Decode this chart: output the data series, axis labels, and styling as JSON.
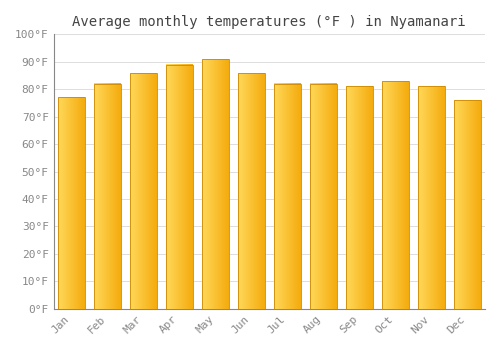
{
  "title": "Average monthly temperatures (°F ) in Nyamanari",
  "months": [
    "Jan",
    "Feb",
    "Mar",
    "Apr",
    "May",
    "Jun",
    "Jul",
    "Aug",
    "Sep",
    "Oct",
    "Nov",
    "Dec"
  ],
  "values": [
    77,
    82,
    86,
    89,
    91,
    86,
    82,
    82,
    81,
    83,
    81,
    76
  ],
  "bar_color_left": "#FFD44E",
  "bar_color_right": "#F5A800",
  "bar_edge_color": "#CC8800",
  "background_color": "#FFFFFF",
  "plot_bg_color": "#FFFFFF",
  "grid_color": "#DDDDDD",
  "ylim": [
    0,
    100
  ],
  "yticks": [
    0,
    10,
    20,
    30,
    40,
    50,
    60,
    70,
    80,
    90,
    100
  ],
  "ytick_labels": [
    "0°F",
    "10°F",
    "20°F",
    "30°F",
    "40°F",
    "50°F",
    "60°F",
    "70°F",
    "80°F",
    "90°F",
    "100°F"
  ],
  "title_fontsize": 10,
  "tick_fontsize": 8,
  "font_family": "monospace",
  "bar_width": 0.75
}
